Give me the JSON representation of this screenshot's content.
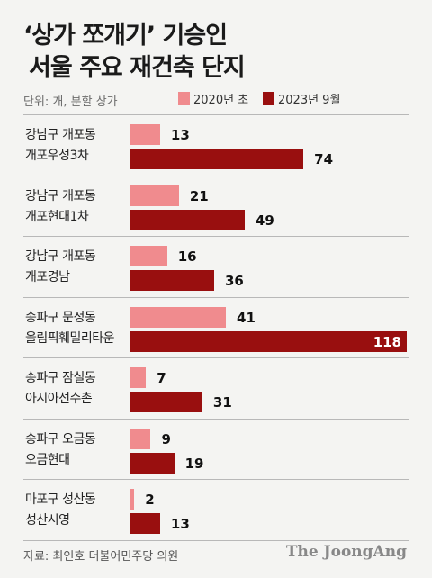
{
  "title": {
    "line1": "‘상가 쪼개기’ 기승인",
    "line2": "서울 주요 재건축 단지"
  },
  "unit_label": "단위: 개, 분할 상가",
  "source": "자료: 최인호 더불어민주당 의원",
  "brand": "The JoongAng",
  "colors": {
    "series_2020": "#f08b8e",
    "series_2023": "#990f0f",
    "background": "#f4f4f2"
  },
  "chart_data": {
    "type": "bar",
    "orientation": "horizontal",
    "categories": [
      [
        "강남구 개포동",
        "개포우성3차"
      ],
      [
        "강남구 개포동",
        "개포현대1차"
      ],
      [
        "강남구 개포동",
        "개포경남"
      ],
      [
        "송파구 문정동",
        "올림픽훼밀리타운"
      ],
      [
        "송파구 잠실동",
        "아시아선수촌"
      ],
      [
        "송파구 오금동",
        "오금현대"
      ],
      [
        "마포구 성산동",
        "성산시영"
      ]
    ],
    "series": [
      {
        "name": "2020년 초",
        "values": [
          13,
          21,
          16,
          41,
          7,
          9,
          2
        ]
      },
      {
        "name": "2023년 9월",
        "values": [
          74,
          49,
          36,
          118,
          31,
          19,
          13
        ]
      }
    ],
    "xlim": [
      0,
      118
    ],
    "legend": "top"
  }
}
